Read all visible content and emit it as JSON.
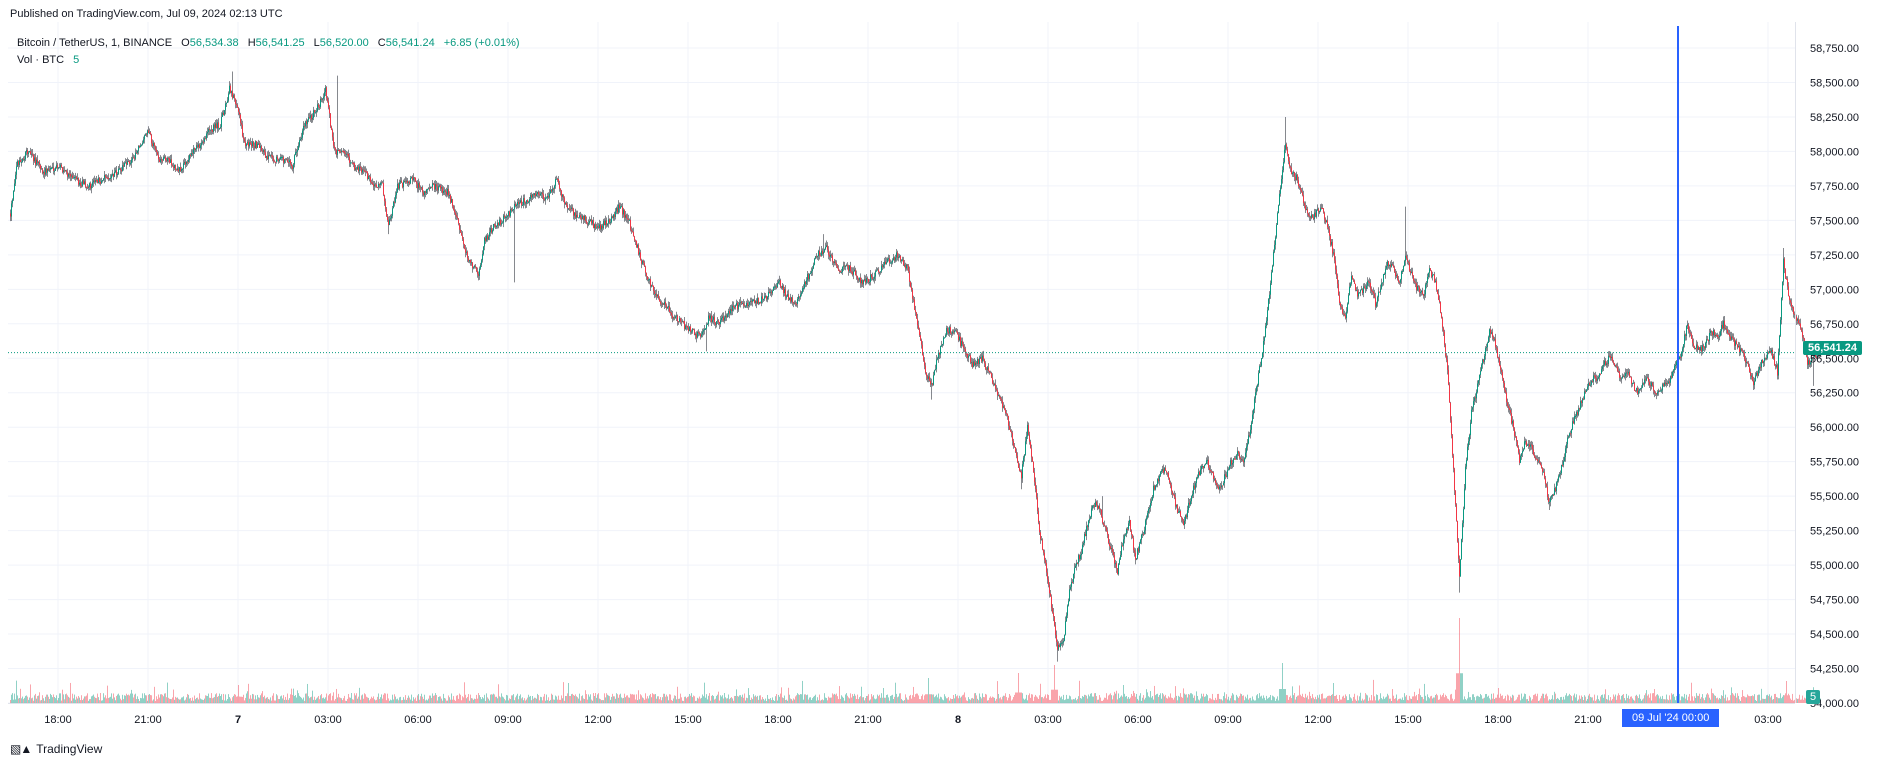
{
  "header": {
    "published": "Published on TradingView.com, Jul 09, 2024 02:13 UTC"
  },
  "legend": {
    "symbol": "Bitcoin / TetherUS, 1, BINANCE",
    "o_label": "O",
    "o_value": "56,534.38",
    "h_label": "H",
    "h_value": "56,541.25",
    "l_label": "L",
    "l_value": "56,520.00",
    "c_label": "C",
    "c_value": "56,541.24",
    "change": "+6.85 (+0.01%)",
    "vol_label": "Vol · BTC",
    "vol_value": "5"
  },
  "price_tag": "56,541.24",
  "vol_tag": "5",
  "crosshair_date": "09 Jul '24   00:00",
  "brand": {
    "name": "TradingView",
    "icon": "tradingview-logo-icon"
  },
  "colors": {
    "up": "#089981",
    "down": "#f23645",
    "wick": "#131722",
    "crosshair": "#2962ff",
    "grid": "#f0f3fa"
  },
  "chart_data": {
    "type": "candlestick",
    "title": "Bitcoin / TetherUS, 1, BINANCE",
    "interval": "1 minute",
    "ylim": [
      54000,
      58900
    ],
    "y_ticks": [
      "58,750.00",
      "58,500.00",
      "58,250.00",
      "58,000.00",
      "57,750.00",
      "57,500.00",
      "57,250.00",
      "57,000.00",
      "56,750.00",
      "56,500.00",
      "56,250.00",
      "56,000.00",
      "55,750.00",
      "55,500.00",
      "55,250.00",
      "55,000.00",
      "54,750.00",
      "54,500.00",
      "54,250.00",
      "54,000.00"
    ],
    "x_ticks": [
      "18:00",
      "21:00",
      "7",
      "03:00",
      "06:00",
      "09:00",
      "12:00",
      "15:00",
      "18:00",
      "21:00",
      "8",
      "03:00",
      "06:00",
      "09:00",
      "12:00",
      "15:00",
      "18:00",
      "21:00",
      "03:00"
    ],
    "x_tick_hours": [
      0,
      3,
      6,
      9,
      12,
      15,
      18,
      21,
      24,
      27,
      30,
      33,
      36,
      39,
      42,
      45,
      48,
      51,
      57
    ],
    "bold_ticks": [
      "7",
      "8"
    ],
    "last_price": 56541.24,
    "crosshair_hour": 54,
    "price_path": [
      [
        -1.6,
        57550
      ],
      [
        -1.4,
        57900
      ],
      [
        -1.0,
        58000
      ],
      [
        -0.5,
        57850
      ],
      [
        0,
        57900
      ],
      [
        0.5,
        57800
      ],
      [
        1.0,
        57750
      ],
      [
        1.5,
        57800
      ],
      [
        2.0,
        57850
      ],
      [
        2.5,
        57950
      ],
      [
        3.0,
        58150
      ],
      [
        3.3,
        57950
      ],
      [
        3.6,
        57950
      ],
      [
        4.0,
        57850
      ],
      [
        4.3,
        57950
      ],
      [
        4.7,
        58050
      ],
      [
        5.0,
        58150
      ],
      [
        5.4,
        58200
      ],
      [
        5.7,
        58450
      ],
      [
        6.0,
        58300
      ],
      [
        6.2,
        58050
      ],
      [
        6.6,
        58050
      ],
      [
        7.0,
        57950
      ],
      [
        7.4,
        57950
      ],
      [
        7.8,
        57900
      ],
      [
        8.2,
        58200
      ],
      [
        8.6,
        58300
      ],
      [
        8.9,
        58450
      ],
      [
        9.2,
        58000
      ],
      [
        9.5,
        58000
      ],
      [
        9.8,
        57900
      ],
      [
        10.2,
        57850
      ],
      [
        10.5,
        57750
      ],
      [
        10.8,
        57750
      ],
      [
        11.0,
        57450
      ],
      [
        11.3,
        57750
      ],
      [
        11.8,
        57800
      ],
      [
        12.2,
        57700
      ],
      [
        12.5,
        57750
      ],
      [
        13.0,
        57700
      ],
      [
        13.3,
        57500
      ],
      [
        13.6,
        57250
      ],
      [
        14.0,
        57100
      ],
      [
        14.2,
        57350
      ],
      [
        14.5,
        57450
      ],
      [
        14.8,
        57500
      ],
      [
        15.2,
        57600
      ],
      [
        15.6,
        57650
      ],
      [
        16.0,
        57700
      ],
      [
        16.3,
        57650
      ],
      [
        16.6,
        57800
      ],
      [
        16.9,
        57600
      ],
      [
        17.2,
        57550
      ],
      [
        17.6,
        57500
      ],
      [
        18.0,
        57450
      ],
      [
        18.4,
        57500
      ],
      [
        18.7,
        57600
      ],
      [
        19.0,
        57500
      ],
      [
        19.3,
        57300
      ],
      [
        19.6,
        57100
      ],
      [
        19.9,
        56950
      ],
      [
        20.2,
        56900
      ],
      [
        20.5,
        56800
      ],
      [
        20.8,
        56750
      ],
      [
        21.1,
        56700
      ],
      [
        21.4,
        56650
      ],
      [
        21.7,
        56800
      ],
      [
        22.0,
        56750
      ],
      [
        22.4,
        56850
      ],
      [
        22.8,
        56900
      ],
      [
        23.2,
        56900
      ],
      [
        23.6,
        56950
      ],
      [
        24.0,
        57050
      ],
      [
        24.3,
        56950
      ],
      [
        24.6,
        56900
      ],
      [
        25.0,
        57100
      ],
      [
        25.3,
        57250
      ],
      [
        25.6,
        57300
      ],
      [
        26.0,
        57150
      ],
      [
        26.4,
        57150
      ],
      [
        26.8,
        57050
      ],
      [
        27.2,
        57100
      ],
      [
        27.6,
        57200
      ],
      [
        28.0,
        57250
      ],
      [
        28.3,
        57150
      ],
      [
        28.6,
        56800
      ],
      [
        28.9,
        56400
      ],
      [
        29.1,
        56300
      ],
      [
        29.3,
        56500
      ],
      [
        29.6,
        56700
      ],
      [
        29.9,
        56700
      ],
      [
        30.2,
        56550
      ],
      [
        30.5,
        56450
      ],
      [
        30.8,
        56500
      ],
      [
        31.0,
        56400
      ],
      [
        31.3,
        56250
      ],
      [
        31.6,
        56100
      ],
      [
        31.9,
        55800
      ],
      [
        32.1,
        55650
      ],
      [
        32.3,
        56000
      ],
      [
        32.5,
        55700
      ],
      [
        32.7,
        55250
      ],
      [
        32.9,
        55000
      ],
      [
        33.1,
        54700
      ],
      [
        33.3,
        54400
      ],
      [
        33.5,
        54450
      ],
      [
        33.7,
        54800
      ],
      [
        33.9,
        55000
      ],
      [
        34.1,
        55100
      ],
      [
        34.3,
        55300
      ],
      [
        34.5,
        55450
      ],
      [
        34.7,
        55400
      ],
      [
        34.9,
        55250
      ],
      [
        35.1,
        55100
      ],
      [
        35.3,
        54950
      ],
      [
        35.5,
        55200
      ],
      [
        35.7,
        55300
      ],
      [
        35.9,
        55050
      ],
      [
        36.1,
        55200
      ],
      [
        36.3,
        55350
      ],
      [
        36.5,
        55550
      ],
      [
        36.7,
        55650
      ],
      [
        36.9,
        55700
      ],
      [
        37.1,
        55550
      ],
      [
        37.3,
        55400
      ],
      [
        37.5,
        55300
      ],
      [
        37.7,
        55450
      ],
      [
        37.9,
        55600
      ],
      [
        38.1,
        55700
      ],
      [
        38.3,
        55750
      ],
      [
        38.5,
        55650
      ],
      [
        38.7,
        55550
      ],
      [
        38.9,
        55650
      ],
      [
        39.1,
        55750
      ],
      [
        39.3,
        55800
      ],
      [
        39.5,
        55750
      ],
      [
        39.7,
        55950
      ],
      [
        39.9,
        56250
      ],
      [
        40.1,
        56500
      ],
      [
        40.3,
        56850
      ],
      [
        40.5,
        57250
      ],
      [
        40.7,
        57700
      ],
      [
        40.9,
        58050
      ],
      [
        41.1,
        57850
      ],
      [
        41.3,
        57800
      ],
      [
        41.5,
        57650
      ],
      [
        41.7,
        57500
      ],
      [
        41.9,
        57550
      ],
      [
        42.1,
        57600
      ],
      [
        42.3,
        57450
      ],
      [
        42.5,
        57250
      ],
      [
        42.7,
        56900
      ],
      [
        42.9,
        56800
      ],
      [
        43.1,
        57100
      ],
      [
        43.3,
        56950
      ],
      [
        43.5,
        57000
      ],
      [
        43.7,
        57050
      ],
      [
        43.9,
        56900
      ],
      [
        44.1,
        57050
      ],
      [
        44.3,
        57200
      ],
      [
        44.5,
        57150
      ],
      [
        44.7,
        57050
      ],
      [
        44.9,
        57250
      ],
      [
        45.1,
        57100
      ],
      [
        45.3,
        57000
      ],
      [
        45.5,
        56950
      ],
      [
        45.7,
        57150
      ],
      [
        45.9,
        57050
      ],
      [
        46.1,
        56800
      ],
      [
        46.3,
        56400
      ],
      [
        46.5,
        55700
      ],
      [
        46.7,
        54900
      ],
      [
        46.9,
        55700
      ],
      [
        47.1,
        56100
      ],
      [
        47.3,
        56300
      ],
      [
        47.5,
        56500
      ],
      [
        47.7,
        56700
      ],
      [
        47.9,
        56600
      ],
      [
        48.1,
        56400
      ],
      [
        48.3,
        56150
      ],
      [
        48.5,
        56000
      ],
      [
        48.7,
        55750
      ],
      [
        48.9,
        55900
      ],
      [
        49.1,
        55850
      ],
      [
        49.3,
        55750
      ],
      [
        49.5,
        55650
      ],
      [
        49.7,
        55450
      ],
      [
        49.9,
        55550
      ],
      [
        50.1,
        55700
      ],
      [
        50.3,
        55900
      ],
      [
        50.5,
        56050
      ],
      [
        50.7,
        56150
      ],
      [
        50.9,
        56250
      ],
      [
        51.1,
        56350
      ],
      [
        51.3,
        56350
      ],
      [
        51.5,
        56450
      ],
      [
        51.7,
        56500
      ],
      [
        51.9,
        56450
      ],
      [
        52.1,
        56350
      ],
      [
        52.3,
        56400
      ],
      [
        52.5,
        56300
      ],
      [
        52.7,
        56250
      ],
      [
        52.9,
        56350
      ],
      [
        53.1,
        56300
      ],
      [
        53.3,
        56250
      ],
      [
        53.5,
        56300
      ],
      [
        53.7,
        56350
      ],
      [
        53.9,
        56450
      ],
      [
        54.1,
        56550
      ],
      [
        54.3,
        56750
      ],
      [
        54.5,
        56600
      ],
      [
        54.7,
        56550
      ],
      [
        54.9,
        56600
      ],
      [
        55.1,
        56700
      ],
      [
        55.3,
        56650
      ],
      [
        55.5,
        56750
      ],
      [
        55.7,
        56650
      ],
      [
        55.9,
        56600
      ],
      [
        56.1,
        56550
      ],
      [
        56.3,
        56450
      ],
      [
        56.5,
        56300
      ],
      [
        56.7,
        56450
      ],
      [
        56.9,
        56500
      ],
      [
        57.1,
        56550
      ],
      [
        57.3,
        56400
      ],
      [
        57.5,
        57200
      ],
      [
        57.7,
        56900
      ],
      [
        57.9,
        56800
      ],
      [
        58.1,
        56700
      ],
      [
        58.3,
        56450
      ],
      [
        58.5,
        56500
      ],
      [
        58.7,
        56541
      ]
    ],
    "spikes": [
      [
        5.8,
        58580,
        -1
      ],
      [
        9.3,
        58550,
        -1
      ],
      [
        11.0,
        57400,
        -1
      ],
      [
        15.2,
        57050,
        -1
      ],
      [
        21.6,
        56550,
        -1
      ],
      [
        25.5,
        57400,
        -1
      ],
      [
        29.1,
        56200,
        -1
      ],
      [
        32.1,
        55550,
        -1
      ],
      [
        33.3,
        54300,
        -1
      ],
      [
        34.8,
        55500,
        -1
      ],
      [
        40.9,
        58250,
        1
      ],
      [
        44.9,
        57600,
        1
      ],
      [
        46.7,
        54800,
        -1
      ],
      [
        49.7,
        55400,
        -1
      ],
      [
        57.5,
        57300,
        1
      ],
      [
        58.5,
        56300,
        -1
      ]
    ],
    "volume_spikes": [
      [
        46.7,
        85
      ],
      [
        40.8,
        40
      ],
      [
        33.2,
        38
      ],
      [
        32.0,
        30
      ],
      [
        29.0,
        25
      ],
      [
        17.0,
        20
      ],
      [
        6.0,
        18
      ],
      [
        48.0,
        15
      ],
      [
        57.6,
        22
      ],
      [
        42.5,
        20
      ],
      [
        35.5,
        18
      ],
      [
        27.5,
        15
      ]
    ]
  }
}
